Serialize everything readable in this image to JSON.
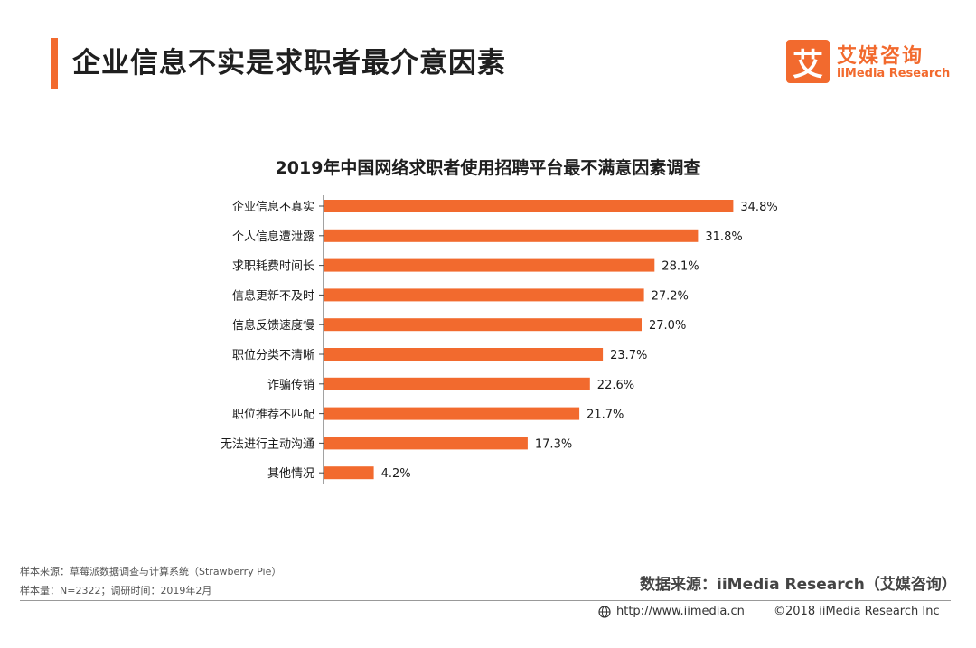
{
  "header": {
    "title": "企业信息不实是求职者最介意因素",
    "accent_color": "#f26a2e"
  },
  "logo": {
    "mark": "艾",
    "name_cn": "艾媒咨询",
    "name_en": "iiMedia Research"
  },
  "chart_data": {
    "type": "bar",
    "orientation": "horizontal",
    "title": "2019年中国网络求职者使用招聘平台最不满意因素调查",
    "categories": [
      "企业信息不真实",
      "个人信息遭泄露",
      "求职耗费时间长",
      "信息更新不及时",
      "信息反馈速度慢",
      "职位分类不清晰",
      "诈骗传销",
      "职位推荐不匹配",
      "无法进行主动沟通",
      "其他情况"
    ],
    "values": [
      34.8,
      31.8,
      28.1,
      27.2,
      27.0,
      23.7,
      22.6,
      21.7,
      17.3,
      4.2
    ],
    "value_labels": [
      "34.8%",
      "31.8%",
      "28.1%",
      "27.2%",
      "27.0%",
      "23.7%",
      "22.6%",
      "21.7%",
      "17.3%",
      "4.2%"
    ],
    "unit": "%",
    "xlim": [
      0,
      35
    ],
    "bar_color": "#f26a2e",
    "grid": false,
    "legend": "none"
  },
  "footer": {
    "sample_source": "样本来源：草莓派数据调查与计算系统（Strawberry Pie）",
    "sample_size": "样本量：N=2322；调研时间：2019年2月",
    "data_source": "数据来源：iiMedia Research（艾媒咨询）",
    "website": "http://www.iimedia.cn",
    "copyright": "©2018  iiMedia Research  Inc"
  }
}
